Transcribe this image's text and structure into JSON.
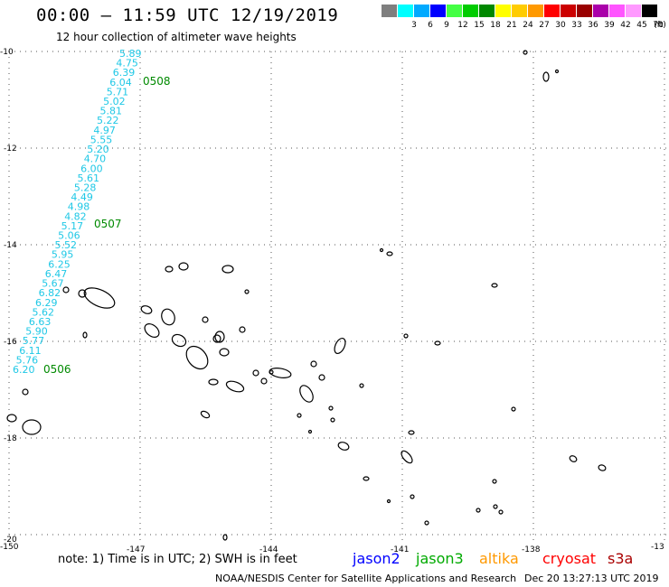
{
  "title": "00:00 – 11:59 UTC 12/19/2019",
  "subtitle": "12 hour collection of altimeter wave heights",
  "scale": {
    "unit_label": "(ft)",
    "swatches": [
      {
        "label": "",
        "color": "#7f7f7f"
      },
      {
        "label": "3",
        "color": "#00ffff"
      },
      {
        "label": "6",
        "color": "#00aaff"
      },
      {
        "label": "9",
        "color": "#0000ff"
      },
      {
        "label": "12",
        "color": "#44ff44"
      },
      {
        "label": "15",
        "color": "#00cc00"
      },
      {
        "label": "18",
        "color": "#008800"
      },
      {
        "label": "21",
        "color": "#ffff00"
      },
      {
        "label": "24",
        "color": "#ffcc00"
      },
      {
        "label": "27",
        "color": "#ff9900"
      },
      {
        "label": "30",
        "color": "#ff0000"
      },
      {
        "label": "33",
        "color": "#cc0000"
      },
      {
        "label": "36",
        "color": "#990000"
      },
      {
        "label": "39",
        "color": "#aa00aa"
      },
      {
        "label": "42",
        "color": "#ff55ff"
      },
      {
        "label": "45",
        "color": "#ff99ff"
      },
      {
        "label": "70",
        "color": "#000000"
      }
    ]
  },
  "map": {
    "lon_labels": [
      "-150",
      "-147",
      "-144",
      "-141",
      "-138",
      "-13"
    ],
    "lat_labels": [
      "-10",
      "-12",
      "-14",
      "-16",
      "-18",
      "-20"
    ]
  },
  "track": {
    "color": "#1fc8e6",
    "wave_heights": [
      "5.89",
      "4.75",
      "6.39",
      "6.04",
      "5.71",
      "5.02",
      "5.81",
      "5.22",
      "4.97",
      "5.55",
      "5.20",
      "4.70",
      "6.00",
      "5.61",
      "5.28",
      "4.49",
      "4.98",
      "4.82",
      "5.17",
      "5.06",
      "5.52",
      "5.95",
      "6.25",
      "6.47",
      "5.67",
      "6.82",
      "6.29",
      "5.62",
      "6.63",
      "5.90",
      "5.77",
      "6.11",
      "5.76",
      "6.20"
    ],
    "time_labels": [
      "0508",
      "0507",
      "0506"
    ]
  },
  "note": "note: 1) Time is in UTC; 2) SWH is in feet",
  "satellites": [
    {
      "name": "jason2",
      "color": "#0000ff"
    },
    {
      "name": "jason3",
      "color": "#00aa00"
    },
    {
      "name": "altika",
      "color": "#ff9900"
    },
    {
      "name": "cryosat",
      "color": "#ff0000"
    },
    {
      "name": "s3a",
      "color": "#aa0000"
    }
  ],
  "credit": "NOAA/NESDIS Center for Satellite Applications and Research",
  "credit_time": "Dec 20 13:27:13 UTC 2019"
}
